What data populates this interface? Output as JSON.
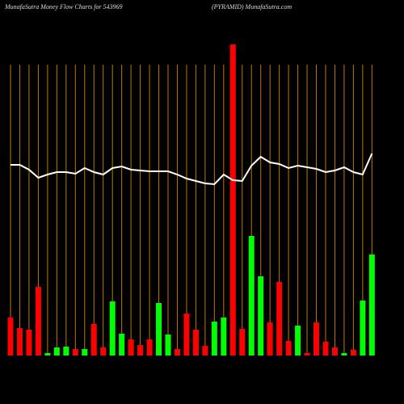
{
  "chart_data": {
    "type": "bar_line",
    "title": "MunafaSutra  Money Flow  Charts for 543969",
    "subtitle": "(PYRAMID) MunafaSutra.com",
    "ylim": [
      0,
      440
    ],
    "bar_series": {
      "values": [
        47,
        34,
        32,
        85,
        3,
        10,
        11,
        8,
        8,
        39,
        10,
        67,
        27,
        20,
        13,
        20,
        65,
        26,
        8,
        52,
        32,
        12,
        42,
        47,
        385,
        33,
        148,
        98,
        41,
        91,
        18,
        37,
        3,
        41,
        17,
        10,
        3,
        7,
        68,
        125
      ],
      "colors": [
        "#ff0000",
        "#ff0000",
        "#ff0000",
        "#ff0000",
        "#00ff00",
        "#00ff00",
        "#00ff00",
        "#ff0000",
        "#00ff00",
        "#ff0000",
        "#ff0000",
        "#00ff00",
        "#00ff00",
        "#ff0000",
        "#ff0000",
        "#ff0000",
        "#00ff00",
        "#00ff00",
        "#ff0000",
        "#ff0000",
        "#ff0000",
        "#ff0000",
        "#00ff00",
        "#00ff00",
        "#ff0000",
        "#ff0000",
        "#00ff00",
        "#00ff00",
        "#ff0000",
        "#ff0000",
        "#ff0000",
        "#00ff00",
        "#ff0000",
        "#ff0000",
        "#ff0000",
        "#ff0000",
        "#00ff00",
        "#ff0000",
        "#00ff00",
        "#00ff00"
      ]
    },
    "line_series": {
      "color": "#ffffff",
      "values": [
        236,
        236,
        230,
        220,
        224,
        227,
        227,
        225,
        232,
        227,
        224,
        232,
        234,
        230,
        229,
        228,
        228,
        228,
        224,
        219,
        216,
        213,
        212,
        224,
        217,
        216,
        235,
        246,
        239,
        237,
        232,
        235,
        233,
        231,
        227,
        229,
        233,
        227,
        224,
        250
      ]
    },
    "grid_color": "#c07800"
  }
}
